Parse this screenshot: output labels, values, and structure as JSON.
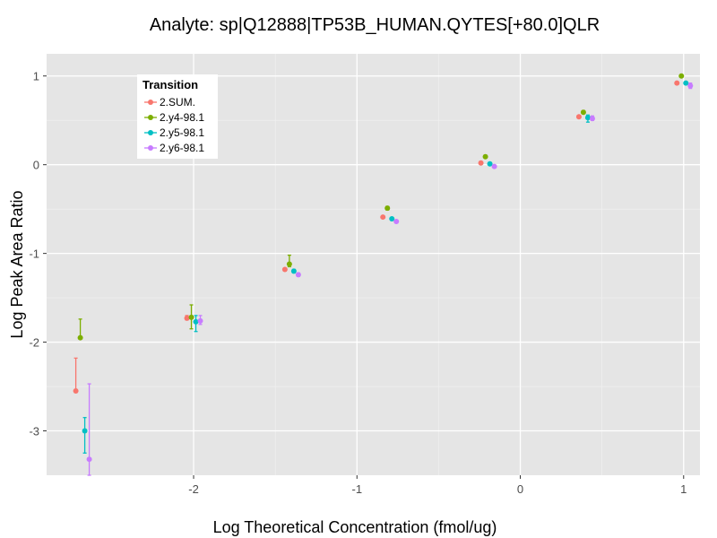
{
  "chart_data": {
    "type": "scatter",
    "title": "Analyte: sp|Q12888|TP53B_HUMAN.QYTES[+80.0]QLR",
    "xlabel": "Log Theoretical Concentration (fmol/ug)",
    "ylabel": "Log Peak Area Ratio",
    "xlim": [
      -2.9,
      1.1
    ],
    "ylim": [
      -3.5,
      1.25
    ],
    "x_ticks": [
      -2,
      -1,
      0,
      1
    ],
    "y_ticks": [
      1,
      0,
      -1,
      -2,
      -3
    ],
    "grid": true,
    "legend": {
      "title": "Transition",
      "position": "top-left"
    },
    "x": [
      -2.68,
      -2.0,
      -1.4,
      -0.8,
      -0.2,
      0.4,
      1.0
    ],
    "series": [
      {
        "name": "2.SUM.",
        "color": "#F8766D",
        "y": [
          -2.55,
          -1.73,
          -1.18,
          -0.59,
          0.02,
          0.54,
          0.92
        ],
        "yerr": [
          [
            -2.55,
            -2.18
          ],
          [
            -1.75,
            -1.7
          ],
          [
            -1.19,
            -1.17
          ],
          [
            -0.6,
            -0.58
          ],
          [
            0.01,
            0.03
          ],
          [
            0.53,
            0.55
          ],
          [
            0.91,
            0.93
          ]
        ]
      },
      {
        "name": "2.y4-98.1",
        "color": "#7CAE00",
        "y": [
          -1.95,
          -1.72,
          -1.12,
          -0.49,
          0.09,
          0.59,
          1.0
        ],
        "yerr": [
          [
            -1.95,
            -1.74
          ],
          [
            -1.85,
            -1.58
          ],
          [
            -1.15,
            -1.02
          ],
          [
            -0.51,
            -0.47
          ],
          [
            0.08,
            0.1
          ],
          [
            0.58,
            0.61
          ],
          [
            0.99,
            1.01
          ]
        ]
      },
      {
        "name": "2.y5-98.1",
        "color": "#00BFC4",
        "y": [
          -3.0,
          -1.77,
          -1.2,
          -0.61,
          0.01,
          0.53,
          0.92
        ],
        "yerr": [
          [
            -3.25,
            -2.85
          ],
          [
            -1.88,
            -1.7
          ],
          [
            -1.22,
            -1.18
          ],
          [
            -0.62,
            -0.6
          ],
          [
            0.0,
            0.02
          ],
          [
            0.48,
            0.56
          ],
          [
            0.91,
            0.93
          ]
        ]
      },
      {
        "name": "2.y6-98.1",
        "color": "#C77CFF",
        "y": [
          -3.32,
          -1.76,
          -1.24,
          -0.64,
          -0.02,
          0.52,
          0.89
        ],
        "yerr": [
          [
            -3.5,
            -2.47
          ],
          [
            -1.8,
            -1.7
          ],
          [
            -1.26,
            -1.22
          ],
          [
            -0.65,
            -0.63
          ],
          [
            -0.03,
            -0.01
          ],
          [
            0.5,
            0.55
          ],
          [
            0.86,
            0.92
          ]
        ]
      }
    ]
  }
}
